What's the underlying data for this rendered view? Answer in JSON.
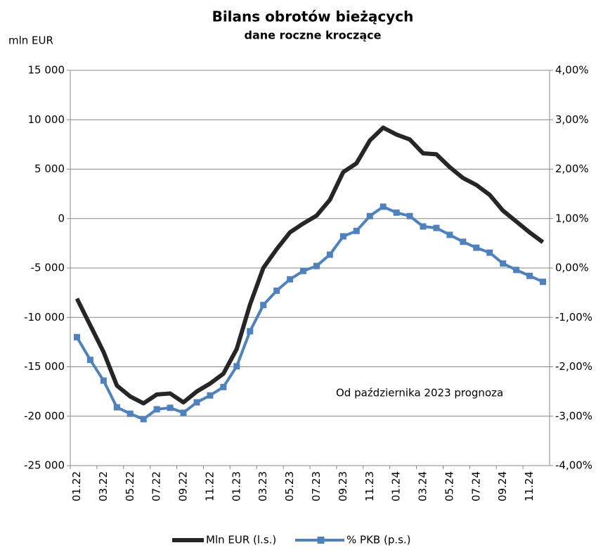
{
  "chart_data": {
    "type": "line",
    "title": "Bilans obrotów bieżących",
    "subtitle": "dane roczne kroczące",
    "y_label": "mln EUR",
    "annotation": "Od października 2023 prognoza",
    "categories": [
      "01.22",
      null,
      "03.22",
      null,
      "05.22",
      null,
      "07.22",
      null,
      "09.22",
      null,
      "11.22",
      null,
      "01.23",
      null,
      "03.23",
      null,
      "05.23",
      null,
      "07.23",
      null,
      "09.23",
      null,
      "11.23",
      null,
      "01.24",
      null,
      "03.24",
      null,
      "05.24",
      null,
      "07.24",
      null,
      "09.24",
      null,
      "11.24",
      null
    ],
    "series": [
      {
        "name": "Mln EUR (l.s.)",
        "color": "#262626",
        "axis": "y",
        "values": [
          -8100,
          -10800,
          -13500,
          -16900,
          -18000,
          -18700,
          -17800,
          -17700,
          -18600,
          -17500,
          -16700,
          -15700,
          -13200,
          -8700,
          -5000,
          -3100,
          -1400,
          -500,
          300,
          1900,
          4700,
          5600,
          7900,
          9200,
          8500,
          8000,
          6600,
          6500,
          5200,
          4100,
          3400,
          2400,
          800,
          -300,
          -1400,
          -2400
        ]
      },
      {
        "name": "% PKB (p.s.)",
        "color": "#4f81bd",
        "axis": "y2",
        "values": [
          -1.4,
          -1.86,
          -2.28,
          -2.82,
          -2.95,
          -3.06,
          -2.86,
          -2.83,
          -2.93,
          -2.72,
          -2.58,
          -2.41,
          -1.99,
          -1.28,
          -0.75,
          -0.46,
          -0.23,
          -0.06,
          0.04,
          0.27,
          0.64,
          0.75,
          1.05,
          1.24,
          1.12,
          1.05,
          0.84,
          0.81,
          0.67,
          0.53,
          0.41,
          0.31,
          0.09,
          -0.04,
          -0.16,
          -0.28
        ]
      }
    ],
    "ylim": [
      -25000,
      15000
    ],
    "yticks": [
      {
        "value": -25000,
        "label": "-25 000"
      },
      {
        "value": -20000,
        "label": "-20 000"
      },
      {
        "value": -15000,
        "label": "-15 000"
      },
      {
        "value": -10000,
        "label": "-10 000"
      },
      {
        "value": -5000,
        "label": "-5 000"
      },
      0,
      {
        "value": 5000,
        "label": "5 000"
      },
      {
        "value": 10000,
        "label": "10 000"
      },
      {
        "value": 15000,
        "label": "15 000"
      }
    ],
    "y2lim": [
      -4,
      4
    ],
    "y2ticks": [
      {
        "value": -4,
        "label": "-4,00%"
      },
      {
        "value": -3,
        "label": "-3,00%"
      },
      {
        "value": -2,
        "label": "-2,00%"
      },
      {
        "value": -1,
        "label": "-1,00%"
      },
      {
        "value": 0,
        "label": "0,00%"
      },
      {
        "value": 1,
        "label": "1,00%"
      },
      {
        "value": 2,
        "label": "2,00%"
      },
      {
        "value": 3,
        "label": "3,00%"
      },
      {
        "value": 4,
        "label": "4,00%"
      }
    ],
    "grid": true,
    "legend": "bottom"
  }
}
